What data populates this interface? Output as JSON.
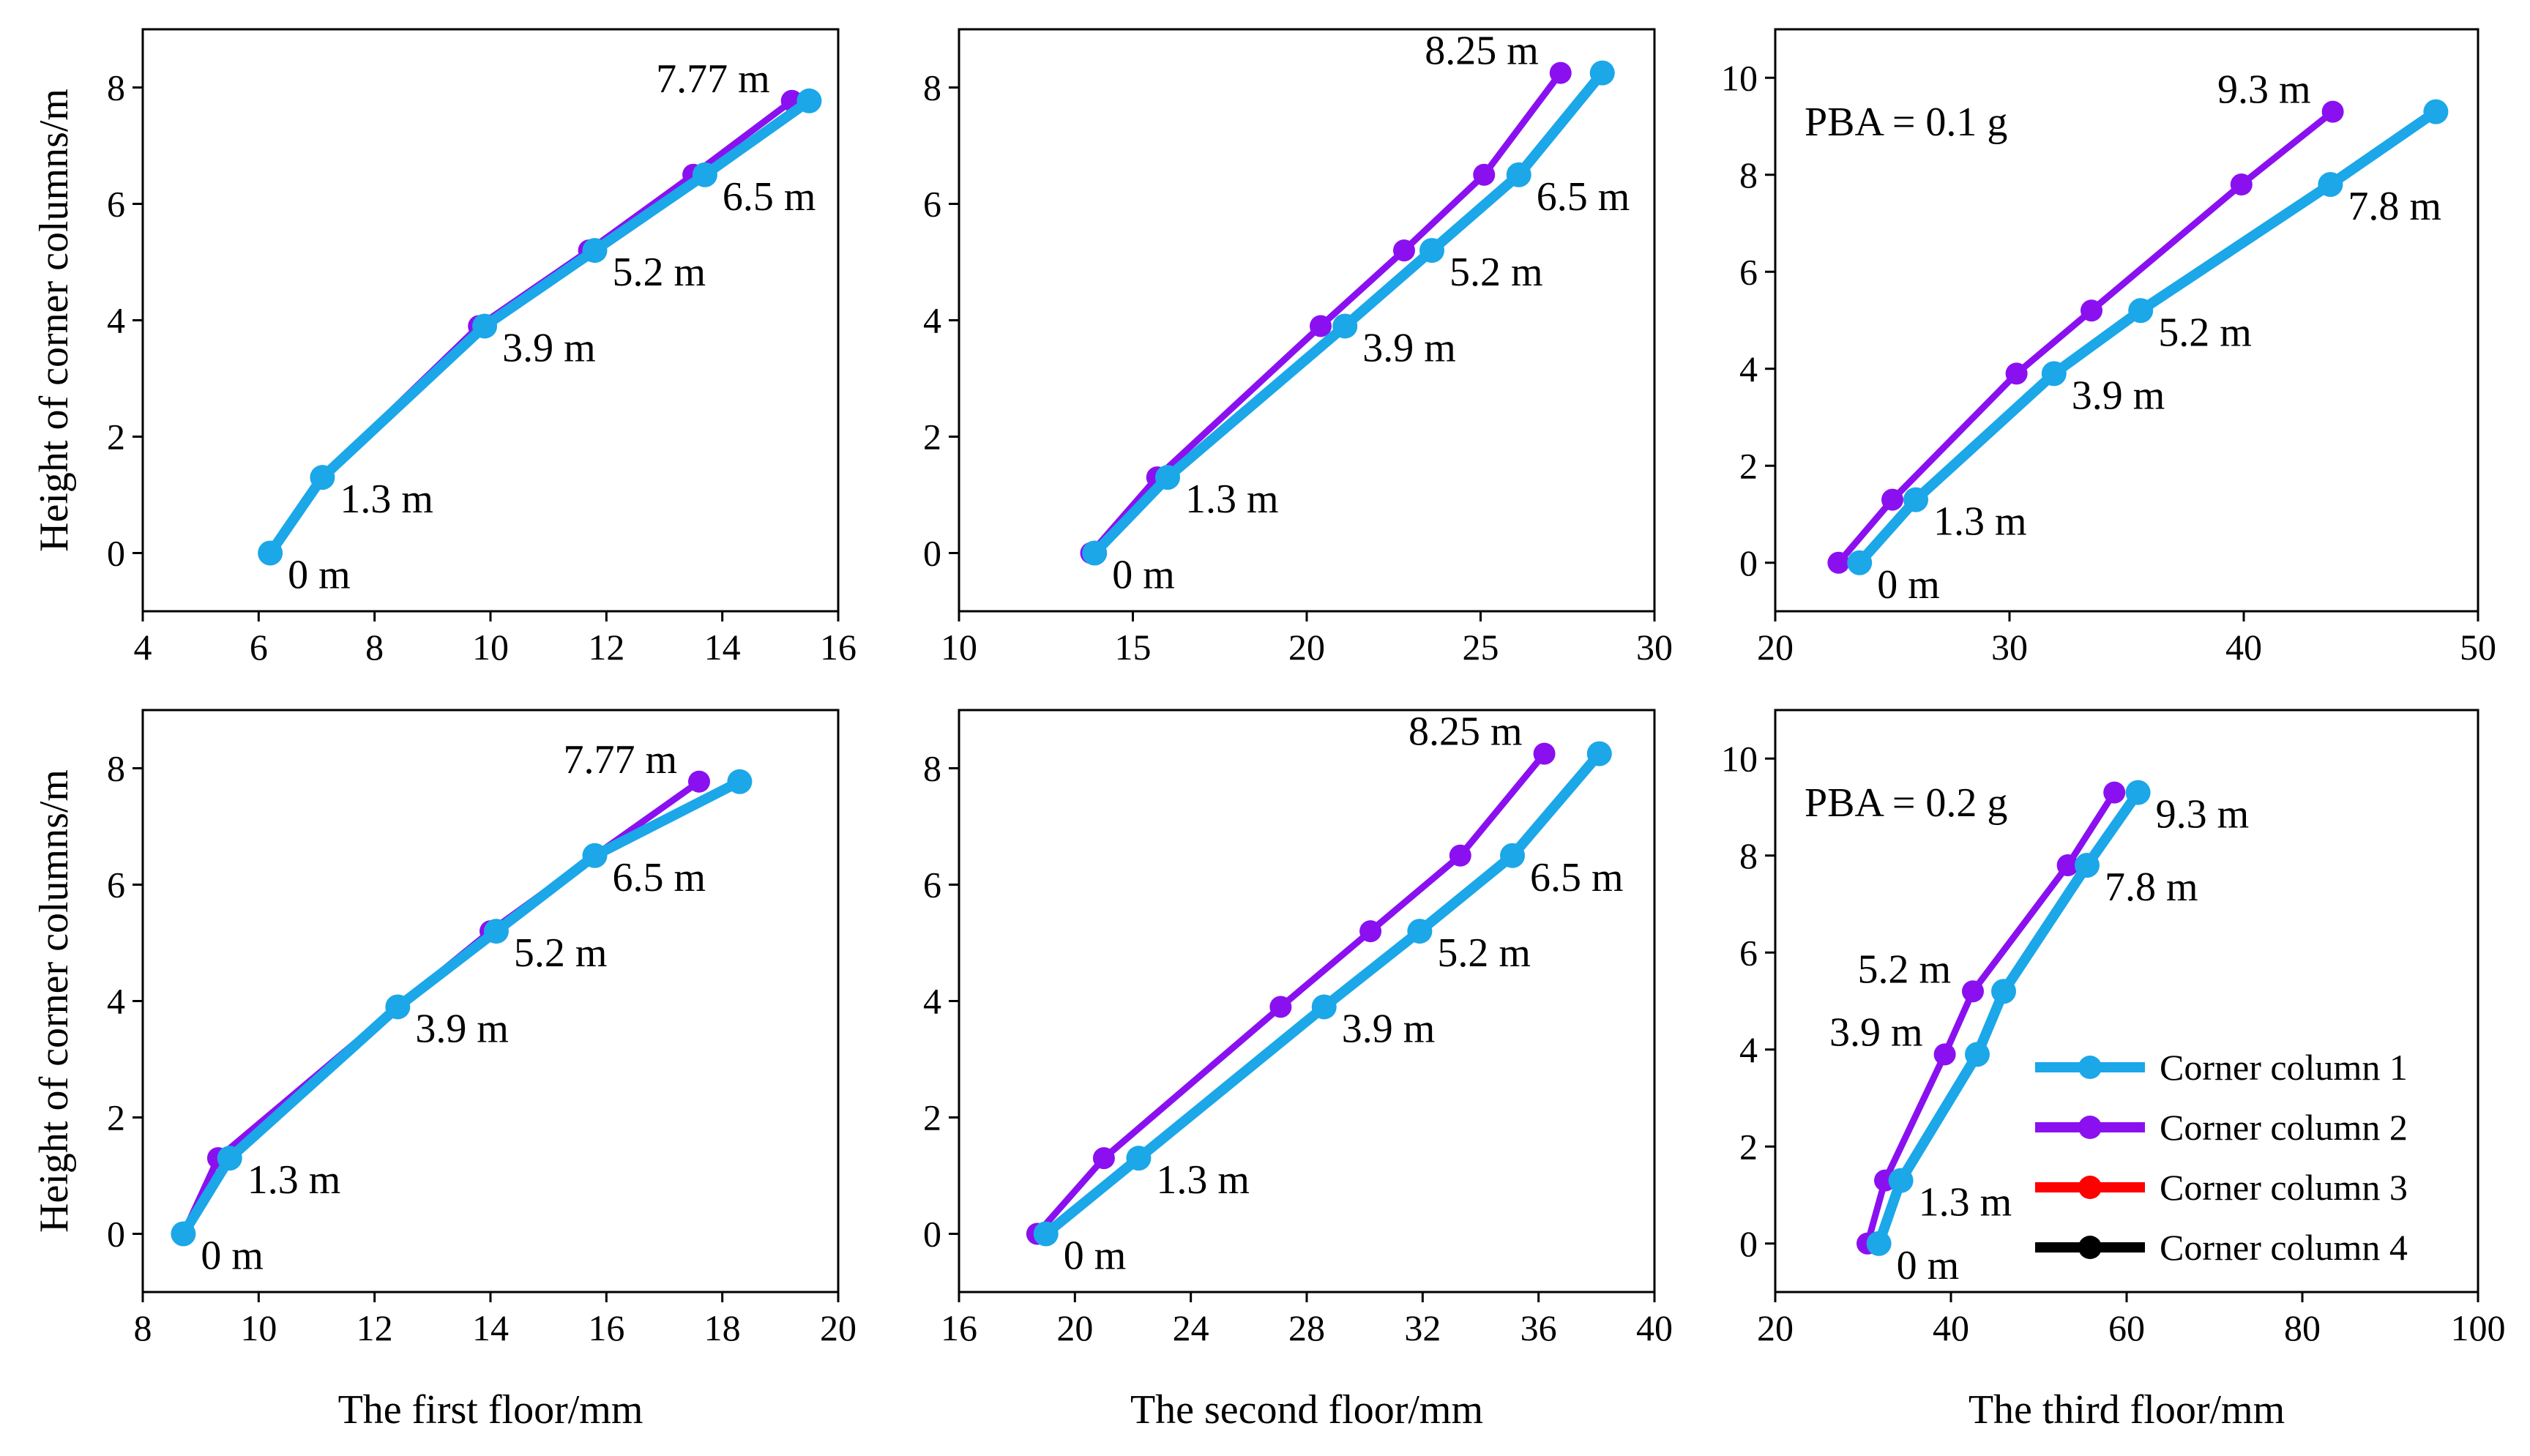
{
  "figure": {
    "ylabel": "Height of corner columns/m",
    "xlabels": [
      "The first floor/mm",
      "The second floor/mm",
      "The third floor/mm"
    ],
    "row_labels": [
      "PBA = 0.1 g",
      "PBA = 0.2 g"
    ]
  },
  "colors": {
    "corner_column_1": "#1BA7E8",
    "corner_column_2": "#8B10F0",
    "corner_column_3": "#FF0000",
    "corner_column_4": "#000000"
  },
  "legend": {
    "location": "lower-right of bottom-right panel",
    "entries": [
      "Corner column 1",
      "Corner column 2",
      "Corner column 3",
      "Corner column 4"
    ]
  },
  "chart_data": [
    {
      "type": "line",
      "id": "p00",
      "xlabel": "",
      "ylabel": "Height of corner columns/m",
      "xlim": [
        4,
        16
      ],
      "ylim": [
        -1,
        9
      ],
      "xticks": [
        4,
        6,
        8,
        10,
        12,
        14,
        16
      ],
      "yticks": [
        0,
        2,
        4,
        6,
        8
      ],
      "series": [
        {
          "name": "Corner column 2",
          "x": [
            6.2,
            7.1,
            9.8,
            11.7,
            13.5,
            15.2
          ],
          "y": [
            0,
            1.3,
            3.9,
            5.2,
            6.5,
            7.77
          ]
        },
        {
          "name": "Corner column 1",
          "x": [
            6.2,
            7.1,
            9.9,
            11.8,
            13.7,
            15.5
          ],
          "y": [
            0,
            1.3,
            3.9,
            5.2,
            6.5,
            7.77
          ]
        }
      ],
      "annotations": [
        {
          "text": "0 m",
          "x": 6.2,
          "y": 0
        },
        {
          "text": "1.3 m",
          "x": 7.1,
          "y": 1.3
        },
        {
          "text": "3.9 m",
          "x": 9.9,
          "y": 3.9
        },
        {
          "text": "5.2 m",
          "x": 11.8,
          "y": 5.2
        },
        {
          "text": "6.5 m",
          "x": 13.7,
          "y": 6.5
        },
        {
          "text": "7.77 m",
          "x": 15.2,
          "y": 7.77,
          "side": "left"
        }
      ]
    },
    {
      "type": "line",
      "id": "p01",
      "xlabel": "",
      "ylabel": "",
      "xlim": [
        10,
        30
      ],
      "ylim": [
        -1,
        9
      ],
      "xticks": [
        10,
        15,
        20,
        25,
        30
      ],
      "yticks": [
        0,
        2,
        4,
        6,
        8
      ],
      "series": [
        {
          "name": "Corner column 2",
          "x": [
            13.8,
            15.7,
            20.4,
            22.8,
            25.1,
            27.3
          ],
          "y": [
            0,
            1.3,
            3.9,
            5.2,
            6.5,
            8.25
          ]
        },
        {
          "name": "Corner column 1",
          "x": [
            13.9,
            16.0,
            21.1,
            23.6,
            26.1,
            28.5
          ],
          "y": [
            0,
            1.3,
            3.9,
            5.2,
            6.5,
            8.25
          ]
        }
      ],
      "annotations": [
        {
          "text": "0 m",
          "x": 13.9,
          "y": 0
        },
        {
          "text": "1.3 m",
          "x": 16.0,
          "y": 1.3
        },
        {
          "text": "3.9 m",
          "x": 21.1,
          "y": 3.9
        },
        {
          "text": "5.2 m",
          "x": 23.6,
          "y": 5.2
        },
        {
          "text": "6.5 m",
          "x": 26.1,
          "y": 6.5
        },
        {
          "text": "8.25 m",
          "x": 27.3,
          "y": 8.25,
          "side": "left"
        }
      ]
    },
    {
      "type": "line",
      "id": "p02",
      "xlabel": "",
      "ylabel": "",
      "xlim": [
        20,
        50
      ],
      "ylim": [
        -1,
        11
      ],
      "xticks": [
        20,
        30,
        40,
        50
      ],
      "yticks": [
        0,
        2,
        4,
        6,
        8,
        10
      ],
      "text_label": "PBA = 0.1 g",
      "series": [
        {
          "name": "Corner column 2",
          "x": [
            22.7,
            25.0,
            30.3,
            33.5,
            39.9,
            43.8
          ],
          "y": [
            0,
            1.3,
            3.9,
            5.2,
            7.8,
            9.3
          ]
        },
        {
          "name": "Corner column 1",
          "x": [
            23.6,
            26.0,
            31.9,
            35.6,
            43.7,
            48.2
          ],
          "y": [
            0,
            1.3,
            3.9,
            5.2,
            7.8,
            9.3
          ]
        }
      ],
      "annotations": [
        {
          "text": "0 m",
          "x": 23.6,
          "y": 0
        },
        {
          "text": "1.3 m",
          "x": 26.0,
          "y": 1.3
        },
        {
          "text": "3.9 m",
          "x": 31.9,
          "y": 3.9
        },
        {
          "text": "5.2 m",
          "x": 35.6,
          "y": 5.2
        },
        {
          "text": "7.8 m",
          "x": 43.7,
          "y": 7.8
        },
        {
          "text": "9.3 m",
          "x": 43.8,
          "y": 9.3,
          "side": "left"
        }
      ]
    },
    {
      "type": "line",
      "id": "p10",
      "xlabel": "The first floor/mm",
      "ylabel": "Height of corner columns/m",
      "xlim": [
        8,
        20
      ],
      "ylim": [
        -1,
        9
      ],
      "xticks": [
        8,
        10,
        12,
        14,
        16,
        18,
        20
      ],
      "yticks": [
        0,
        2,
        4,
        6,
        8
      ],
      "series": [
        {
          "name": "Corner column 2",
          "x": [
            8.7,
            9.3,
            12.4,
            14.0,
            15.8,
            17.6
          ],
          "y": [
            0,
            1.3,
            3.9,
            5.2,
            6.5,
            7.77
          ]
        },
        {
          "name": "Corner column 1",
          "x": [
            8.7,
            9.5,
            12.4,
            14.1,
            15.8,
            18.3
          ],
          "y": [
            0,
            1.3,
            3.9,
            5.2,
            6.5,
            7.77
          ]
        }
      ],
      "annotations": [
        {
          "text": "0 m",
          "x": 8.7,
          "y": 0
        },
        {
          "text": "1.3 m",
          "x": 9.5,
          "y": 1.3
        },
        {
          "text": "3.9 m",
          "x": 12.4,
          "y": 3.9
        },
        {
          "text": "5.2 m",
          "x": 14.1,
          "y": 5.2
        },
        {
          "text": "6.5 m",
          "x": 15.8,
          "y": 6.5
        },
        {
          "text": "7.77 m",
          "x": 17.6,
          "y": 7.77,
          "side": "left"
        }
      ]
    },
    {
      "type": "line",
      "id": "p11",
      "xlabel": "The second floor/mm",
      "ylabel": "",
      "xlim": [
        16,
        40
      ],
      "ylim": [
        -1,
        9
      ],
      "xticks": [
        16,
        20,
        24,
        28,
        32,
        36,
        40
      ],
      "yticks": [
        0,
        2,
        4,
        6,
        8
      ],
      "series": [
        {
          "name": "Corner column 2",
          "x": [
            18.7,
            21.0,
            27.1,
            30.2,
            33.3,
            36.2
          ],
          "y": [
            0,
            1.3,
            3.9,
            5.2,
            6.5,
            8.25
          ]
        },
        {
          "name": "Corner column 1",
          "x": [
            19.0,
            22.2,
            28.6,
            31.9,
            35.1,
            38.1
          ],
          "y": [
            0,
            1.3,
            3.9,
            5.2,
            6.5,
            8.25
          ]
        }
      ],
      "annotations": [
        {
          "text": "0 m",
          "x": 19.0,
          "y": 0
        },
        {
          "text": "1.3 m",
          "x": 22.2,
          "y": 1.3
        },
        {
          "text": "3.9 m",
          "x": 28.6,
          "y": 3.9
        },
        {
          "text": "5.2 m",
          "x": 31.9,
          "y": 5.2
        },
        {
          "text": "6.5 m",
          "x": 35.1,
          "y": 6.5
        },
        {
          "text": "8.25 m",
          "x": 36.2,
          "y": 8.25,
          "side": "left"
        }
      ]
    },
    {
      "type": "line",
      "id": "p12",
      "xlabel": "The third floor/mm",
      "ylabel": "",
      "xlim": [
        20,
        100
      ],
      "ylim": [
        -1,
        11
      ],
      "xticks": [
        20,
        40,
        60,
        80,
        100
      ],
      "yticks": [
        0,
        2,
        4,
        6,
        8,
        10
      ],
      "text_label": "PBA = 0.2 g",
      "series": [
        {
          "name": "Corner column 2",
          "x": [
            30.5,
            32.5,
            39.3,
            42.5,
            53.3,
            58.6
          ],
          "y": [
            0,
            1.3,
            3.9,
            5.2,
            7.8,
            9.3
          ]
        },
        {
          "name": "Corner column 1",
          "x": [
            31.8,
            34.3,
            43.0,
            46.0,
            55.5,
            61.3
          ],
          "y": [
            0,
            1.3,
            3.9,
            5.2,
            7.8,
            9.3
          ]
        }
      ],
      "annotations": [
        {
          "text": "0 m",
          "x": 31.8,
          "y": 0
        },
        {
          "text": "1.3 m",
          "x": 34.3,
          "y": 1.3
        },
        {
          "text": "3.9 m",
          "x": 39.3,
          "y": 3.9,
          "side": "left"
        },
        {
          "text": "5.2 m",
          "x": 42.5,
          "y": 5.2,
          "side": "left"
        },
        {
          "text": "7.8 m",
          "x": 55.5,
          "y": 7.8
        },
        {
          "text": "9.3 m",
          "x": 61.3,
          "y": 9.3
        }
      ],
      "legend": true
    }
  ]
}
